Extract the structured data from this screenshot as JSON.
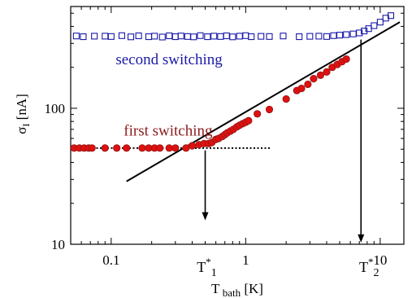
{
  "chart_data": {
    "type": "scatter",
    "xlabel": {
      "main": "T",
      "sub": "bath",
      "unit": "[K]"
    },
    "ylabel": {
      "main": "σ",
      "sub": "I",
      "unit": "[nA]"
    },
    "x_scale": "log",
    "y_scale": "log",
    "xlim": [
      0.05,
      15
    ],
    "ylim": [
      10,
      560
    ],
    "x_ticks": [
      {
        "value": 0.1,
        "label": "0.1"
      },
      {
        "value": 1,
        "label": "1"
      },
      {
        "value": 10,
        "label": "10"
      }
    ],
    "y_ticks": [
      {
        "value": 10,
        "label": "10"
      },
      {
        "value": 100,
        "label": "100"
      }
    ],
    "grid": false,
    "series": [
      {
        "label": "first switching",
        "color": "#8b1a1a",
        "marker": "filled-circle",
        "x": [
          0.053,
          0.058,
          0.063,
          0.068,
          0.072,
          0.09,
          0.11,
          0.13,
          0.17,
          0.19,
          0.21,
          0.23,
          0.27,
          0.3,
          0.36,
          0.4,
          0.45,
          0.49,
          0.53,
          0.56,
          0.6,
          0.63,
          0.67,
          0.7,
          0.73,
          0.77,
          0.81,
          0.86,
          0.9,
          0.95,
          1.0,
          1.05,
          1.22,
          1.5,
          2.0,
          2.4,
          2.6,
          2.9,
          3.2,
          3.6,
          4.0,
          4.4,
          4.8,
          5.2,
          5.6
        ],
        "y": [
          51,
          51,
          51,
          51,
          51,
          51,
          51,
          51,
          51,
          51,
          51,
          51,
          51,
          51,
          51,
          53,
          54,
          55,
          55,
          56,
          59,
          60,
          62,
          64,
          66,
          68,
          70,
          73,
          75,
          77,
          79,
          81,
          91,
          98,
          117,
          135,
          140,
          150,
          165,
          175,
          185,
          200,
          210,
          220,
          230
        ]
      },
      {
        "label": "second switching",
        "color": "#1a1aa8",
        "marker": "open-square",
        "x": [
          0.055,
          0.062,
          0.075,
          0.09,
          0.1,
          0.12,
          0.14,
          0.16,
          0.19,
          0.21,
          0.24,
          0.27,
          0.3,
          0.33,
          0.37,
          0.41,
          0.46,
          0.52,
          0.58,
          0.65,
          0.72,
          0.8,
          0.9,
          1.0,
          1.1,
          1.3,
          1.5,
          1.9,
          2.5,
          3.0,
          3.5,
          4.0,
          4.5,
          5.0,
          5.6,
          6.3,
          7.0,
          7.6,
          8.2,
          9.0,
          10.0,
          11.0,
          12.0
        ],
        "y": [
          340,
          336,
          339,
          339,
          337,
          342,
          335,
          341,
          336,
          339,
          334,
          341,
          336,
          340,
          337,
          335,
          342,
          336,
          339,
          337,
          341,
          335,
          339,
          342,
          336,
          338,
          337,
          340,
          336,
          338,
          339,
          337,
          342,
          345,
          348,
          352,
          358,
          370,
          385,
          405,
          430,
          460,
          480
        ]
      }
    ],
    "fit_line": {
      "x": [
        0.13,
        14
      ],
      "y": [
        29,
        430
      ]
    },
    "plateau_line": {
      "x": [
        0.05,
        1.55
      ],
      "y": [
        51,
        51
      ]
    },
    "arrows": [
      {
        "x": 0.5,
        "y_from": 49,
        "y_to": 15,
        "label_main": "T",
        "label_sup": "*",
        "label_sub": "1"
      },
      {
        "x": 7.2,
        "y_from": 320,
        "y_to": 10.3,
        "label_main": "T",
        "label_sup": "*",
        "label_sub": "2"
      }
    ],
    "annotations": [
      {
        "text": "first switching",
        "color": "#8b1a1a",
        "x": 0.124,
        "y": 63
      },
      {
        "text": "second switching",
        "color": "#1a1aa8",
        "x": 0.108,
        "y": 210
      }
    ]
  }
}
